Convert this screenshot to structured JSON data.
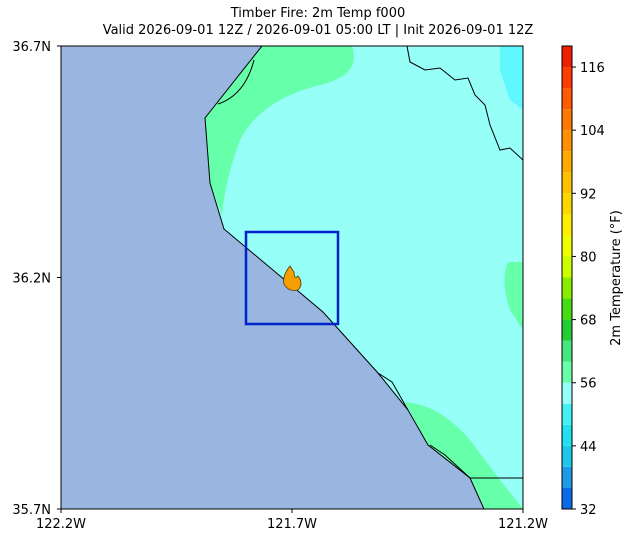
{
  "title": [
    "Timber Fire: 2m Temp f000",
    "Valid 2026-09-01 12Z / 2026-09-01 05:00 LT | Init 2026-09-01 12Z"
  ],
  "map": {
    "xlim": [
      -122.2,
      -121.2
    ],
    "ylim": [
      35.7,
      36.7
    ],
    "xticks": [
      {
        "value": -122.2,
        "label": "122.2W"
      },
      {
        "value": -121.7,
        "label": "121.7W"
      },
      {
        "value": -121.2,
        "label": "121.2W"
      }
    ],
    "yticks": [
      {
        "value": 35.7,
        "label": "35.7N"
      },
      {
        "value": 36.2,
        "label": "36.2N"
      },
      {
        "value": 36.7,
        "label": "36.7N"
      }
    ]
  },
  "colorbar": {
    "label": "2m Temperature (°F)",
    "lim": [
      32,
      120
    ],
    "ticks": [
      32,
      44,
      56,
      68,
      80,
      92,
      104,
      116
    ],
    "levels": [
      32,
      36,
      40,
      44,
      48,
      52,
      56,
      60,
      64,
      68,
      72,
      76,
      80,
      84,
      88,
      92,
      96,
      100,
      104,
      108,
      112,
      116,
      120
    ],
    "colors": [
      "#0a6ae8",
      "#1c9be8",
      "#1ec8e8",
      "#22e0f0",
      "#44f0f4",
      "#96fff8",
      "#66ffaa",
      "#44e67e",
      "#22cc33",
      "#44dd11",
      "#88ee00",
      "#ccff00",
      "#eeff00",
      "#ffee00",
      "#ffd700",
      "#ffc000",
      "#ffaa00",
      "#ff9000",
      "#ff7800",
      "#ff5a00",
      "#ff3c00",
      "#ee2000"
    ]
  }
}
